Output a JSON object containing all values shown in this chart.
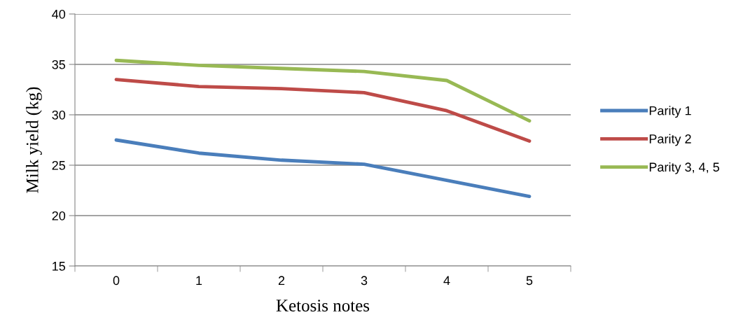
{
  "chart_data": {
    "type": "line",
    "xlabel": "Ketosis notes",
    "ylabel": "Milk yield (kg)",
    "categories": [
      "0",
      "1",
      "2",
      "3",
      "4",
      "5"
    ],
    "series": [
      {
        "name": "Parity 1",
        "color": "#4a7ebb",
        "values": [
          27.5,
          26.2,
          25.5,
          25.1,
          23.5,
          21.9
        ]
      },
      {
        "name": "Parity 2",
        "color": "#be4b48",
        "values": [
          33.5,
          32.8,
          32.6,
          32.2,
          30.4,
          27.4
        ]
      },
      {
        "name": "Parity 3, 4, 5",
        "color": "#98b954",
        "values": [
          35.4,
          34.9,
          34.6,
          34.3,
          33.4,
          29.4
        ]
      }
    ],
    "ylim": [
      15,
      40
    ],
    "yticks": [
      15,
      20,
      25,
      30,
      35,
      40
    ],
    "grid": "y",
    "legend": "right",
    "marker": "none",
    "line_style": "solid"
  }
}
